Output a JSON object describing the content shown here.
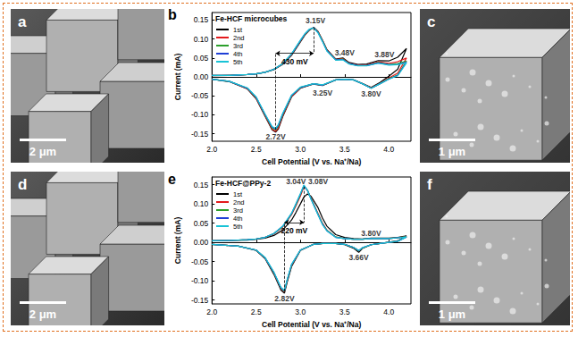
{
  "images": [
    {
      "label": "a",
      "scale_bar": "2 μm"
    },
    {
      "label": "c",
      "scale_bar": "1 μm"
    },
    {
      "label": "d",
      "scale_bar": "2 μm"
    },
    {
      "label": "f",
      "scale_bar": "1 μm"
    }
  ],
  "chart_data": [
    {
      "type": "line",
      "panel_label": "b",
      "title": "Fe-HCF microcubes",
      "x_label": "Cell Potential (V vs. Na⁺/Na)",
      "y_label": "Current (mA)",
      "xlim": [
        2.0,
        4.25
      ],
      "xticks": [
        {
          "value": 2,
          "label": "2.0"
        },
        2.5,
        {
          "value": 3,
          "label": "3.0"
        },
        3.5,
        {
          "value": 4,
          "label": "4.0"
        }
      ],
      "ylim": [
        -0.17,
        0.17
      ],
      "yticks": [
        -0.15,
        {
          "value": -0.1,
          "label": "-0.10"
        },
        -0.05,
        {
          "value": 0,
          "label": "0.00"
        },
        0.05,
        {
          "value": 0.1,
          "label": "0.10"
        },
        0.15
      ],
      "grid": false,
      "legend": "upper left",
      "x": [
        2.0,
        2.2,
        2.4,
        2.5,
        2.6,
        2.7,
        2.8,
        2.9,
        3.0,
        3.05,
        3.1,
        3.15,
        3.2,
        3.25,
        3.3,
        3.4,
        3.48,
        3.55,
        3.65,
        3.75,
        3.88,
        4.0,
        4.1,
        4.2,
        4.1,
        4.0,
        3.9,
        3.8,
        3.7,
        3.6,
        3.5,
        3.4,
        3.25,
        3.15,
        3.0,
        2.9,
        2.8,
        2.75,
        2.72,
        2.68,
        2.6,
        2.5,
        2.4,
        2.2,
        2.0
      ],
      "series": [
        {
          "name": "1st",
          "color": "#000000",
          "values": [
            0.003,
            0.004,
            0.006,
            0.008,
            0.012,
            0.019,
            0.033,
            0.057,
            0.092,
            0.11,
            0.123,
            0.131,
            0.12,
            0.097,
            0.072,
            0.047,
            0.05,
            0.038,
            0.033,
            0.034,
            0.043,
            0.042,
            0.052,
            0.075,
            0.02,
            0.002,
            -0.015,
            -0.028,
            -0.017,
            -0.008,
            -0.006,
            -0.008,
            -0.023,
            -0.019,
            -0.03,
            -0.053,
            -0.105,
            -0.138,
            -0.146,
            -0.14,
            -0.104,
            -0.058,
            -0.032,
            -0.013,
            -0.006
          ]
        },
        {
          "name": "2nd",
          "color": "#e41a1c",
          "values": [
            0.004,
            0.004,
            0.006,
            0.008,
            0.012,
            0.02,
            0.034,
            0.059,
            0.094,
            0.111,
            0.124,
            0.13,
            0.119,
            0.096,
            0.071,
            0.046,
            0.048,
            0.036,
            0.031,
            0.031,
            0.04,
            0.036,
            0.04,
            0.05,
            0.01,
            -0.003,
            -0.017,
            -0.029,
            -0.018,
            -0.008,
            -0.006,
            -0.008,
            -0.022,
            -0.018,
            -0.029,
            -0.052,
            -0.103,
            -0.135,
            -0.144,
            -0.138,
            -0.102,
            -0.057,
            -0.031,
            -0.012,
            -0.006
          ]
        },
        {
          "name": "3rd",
          "color": "#2ca02c",
          "values": [
            0.004,
            0.004,
            0.006,
            0.008,
            0.012,
            0.02,
            0.035,
            0.06,
            0.095,
            0.112,
            0.124,
            0.13,
            0.118,
            0.095,
            0.07,
            0.045,
            0.047,
            0.035,
            0.03,
            0.03,
            0.038,
            0.033,
            0.035,
            0.042,
            0.005,
            -0.005,
            -0.018,
            -0.03,
            -0.018,
            -0.008,
            -0.006,
            -0.008,
            -0.022,
            -0.018,
            -0.028,
            -0.05,
            -0.1,
            -0.13,
            -0.14,
            -0.135,
            -0.1,
            -0.055,
            -0.03,
            -0.012,
            -0.006
          ]
        },
        {
          "name": "4th",
          "color": "#1f3fd6",
          "values": [
            0.004,
            0.004,
            0.006,
            0.008,
            0.012,
            0.02,
            0.035,
            0.06,
            0.096,
            0.113,
            0.125,
            0.13,
            0.117,
            0.094,
            0.069,
            0.045,
            0.046,
            0.035,
            0.03,
            0.03,
            0.037,
            0.032,
            0.033,
            0.039,
            0.004,
            -0.006,
            -0.018,
            -0.03,
            -0.018,
            -0.008,
            -0.006,
            -0.008,
            -0.022,
            -0.018,
            -0.028,
            -0.049,
            -0.098,
            -0.128,
            -0.138,
            -0.133,
            -0.099,
            -0.054,
            -0.03,
            -0.012,
            -0.006
          ]
        },
        {
          "name": "5th",
          "color": "#19c3d6",
          "values": [
            0.004,
            0.004,
            0.006,
            0.008,
            0.012,
            0.02,
            0.035,
            0.061,
            0.097,
            0.114,
            0.126,
            0.129,
            0.116,
            0.093,
            0.068,
            0.044,
            0.045,
            0.034,
            0.029,
            0.029,
            0.036,
            0.031,
            0.032,
            0.037,
            0.003,
            -0.006,
            -0.018,
            -0.03,
            -0.018,
            -0.008,
            -0.006,
            -0.008,
            -0.021,
            -0.018,
            -0.027,
            -0.048,
            -0.096,
            -0.126,
            -0.136,
            -0.131,
            -0.098,
            -0.053,
            -0.029,
            -0.012,
            -0.006
          ]
        }
      ],
      "annotations": [
        {
          "text": "3.15V",
          "x": 3.17,
          "y": 0.148
        },
        {
          "text": "3.48V",
          "x": 3.5,
          "y": 0.064
        },
        {
          "text": "3.88V",
          "x": 3.95,
          "y": 0.06
        },
        {
          "text": "3.25V",
          "x": 3.25,
          "y": -0.042
        },
        {
          "text": "3.80V",
          "x": 3.8,
          "y": -0.046
        },
        {
          "text": "2.72V",
          "x": 2.72,
          "y": -0.158
        }
      ],
      "peak_separation": {
        "label": "430 mV",
        "from": [
          2.72,
          -0.14
        ],
        "to": [
          3.15,
          0.13
        ],
        "y": 0.062
      }
    },
    {
      "type": "line",
      "panel_label": "e",
      "title": "Fe-HCF@PPy-2",
      "x_label": "Cell Potential (V vs. Na⁺/Na)",
      "y_label": "Current (mA)",
      "xlim": [
        2.0,
        4.25
      ],
      "xticks": [
        {
          "value": 2,
          "label": "2.0"
        },
        2.5,
        {
          "value": 3,
          "label": "3.0"
        },
        3.5,
        {
          "value": 4,
          "label": "4.0"
        }
      ],
      "ylim": [
        -0.16,
        0.17
      ],
      "yticks": [
        -0.15,
        {
          "value": -0.1,
          "label": "-0.10"
        },
        -0.05,
        {
          "value": 0,
          "label": "0.00"
        },
        0.05,
        {
          "value": 0.1,
          "label": "0.10"
        },
        0.15
      ],
      "grid": false,
      "legend": "upper left",
      "x": [
        2.0,
        2.2,
        2.4,
        2.5,
        2.6,
        2.7,
        2.8,
        2.9,
        2.95,
        3.0,
        3.04,
        3.08,
        3.12,
        3.2,
        3.25,
        3.3,
        3.4,
        3.5,
        3.6,
        3.7,
        3.8,
        3.9,
        4.0,
        4.1,
        4.2,
        4.1,
        4.0,
        3.9,
        3.8,
        3.7,
        3.66,
        3.6,
        3.5,
        3.4,
        3.25,
        3.15,
        3.0,
        2.9,
        2.85,
        2.82,
        2.78,
        2.7,
        2.6,
        2.5,
        2.3,
        2.0
      ],
      "series": [
        {
          "name": "1st",
          "color": "#000000",
          "values": [
            0.004,
            0.005,
            0.006,
            0.008,
            0.011,
            0.018,
            0.032,
            0.058,
            0.078,
            0.1,
            0.118,
            0.126,
            0.12,
            0.09,
            0.063,
            0.042,
            0.02,
            0.013,
            0.01,
            0.009,
            0.011,
            0.011,
            0.011,
            0.013,
            0.017,
            0.004,
            0.001,
            -0.003,
            -0.006,
            -0.016,
            -0.026,
            -0.015,
            -0.006,
            -0.003,
            -0.003,
            -0.005,
            -0.021,
            -0.063,
            -0.104,
            -0.132,
            -0.124,
            -0.083,
            -0.042,
            -0.021,
            -0.01,
            -0.005
          ]
        },
        {
          "name": "2nd",
          "color": "#e41a1c",
          "values": [
            0.004,
            0.005,
            0.007,
            0.009,
            0.013,
            0.022,
            0.04,
            0.072,
            0.095,
            0.12,
            0.145,
            0.135,
            0.115,
            0.075,
            0.05,
            0.032,
            0.014,
            0.01,
            0.008,
            0.008,
            0.01,
            0.01,
            0.01,
            0.012,
            0.015,
            0.003,
            0.0,
            -0.003,
            -0.006,
            -0.015,
            -0.022,
            -0.013,
            -0.005,
            -0.003,
            -0.003,
            -0.005,
            -0.02,
            -0.06,
            -0.1,
            -0.128,
            -0.12,
            -0.08,
            -0.04,
            -0.02,
            -0.01,
            -0.005
          ]
        },
        {
          "name": "3rd",
          "color": "#2ca02c",
          "values": [
            0.004,
            0.005,
            0.007,
            0.009,
            0.013,
            0.023,
            0.041,
            0.074,
            0.098,
            0.124,
            0.147,
            0.136,
            0.114,
            0.073,
            0.048,
            0.031,
            0.014,
            0.01,
            0.008,
            0.008,
            0.01,
            0.01,
            0.01,
            0.012,
            0.015,
            0.003,
            0.0,
            -0.003,
            -0.006,
            -0.015,
            -0.022,
            -0.013,
            -0.005,
            -0.003,
            -0.003,
            -0.005,
            -0.02,
            -0.059,
            -0.099,
            -0.127,
            -0.119,
            -0.079,
            -0.04,
            -0.02,
            -0.01,
            -0.005
          ]
        },
        {
          "name": "4th",
          "color": "#1f3fd6",
          "values": [
            0.004,
            0.005,
            0.007,
            0.009,
            0.013,
            0.023,
            0.042,
            0.075,
            0.1,
            0.126,
            0.148,
            0.135,
            0.113,
            0.072,
            0.047,
            0.03,
            0.013,
            0.01,
            0.008,
            0.008,
            0.01,
            0.01,
            0.01,
            0.012,
            0.014,
            0.003,
            0.0,
            -0.003,
            -0.006,
            -0.014,
            -0.021,
            -0.013,
            -0.005,
            -0.003,
            -0.003,
            -0.005,
            -0.02,
            -0.058,
            -0.098,
            -0.126,
            -0.118,
            -0.078,
            -0.04,
            -0.02,
            -0.01,
            -0.005
          ]
        },
        {
          "name": "5th",
          "color": "#19c3d6",
          "values": [
            0.004,
            0.005,
            0.007,
            0.009,
            0.013,
            0.023,
            0.042,
            0.076,
            0.101,
            0.127,
            0.149,
            0.135,
            0.112,
            0.071,
            0.046,
            0.03,
            0.013,
            0.01,
            0.008,
            0.008,
            0.01,
            0.01,
            0.01,
            0.012,
            0.014,
            0.003,
            0.0,
            -0.003,
            -0.006,
            -0.014,
            -0.021,
            -0.013,
            -0.005,
            -0.003,
            -0.003,
            -0.005,
            -0.02,
            -0.057,
            -0.097,
            -0.125,
            -0.117,
            -0.077,
            -0.039,
            -0.02,
            -0.01,
            -0.005
          ]
        }
      ],
      "annotations": [
        {
          "text": "3.04V",
          "x": 2.95,
          "y": 0.158
        },
        {
          "text": "3.08V",
          "x": 3.2,
          "y": 0.158
        },
        {
          "text": "3.80V",
          "x": 3.8,
          "y": 0.024
        },
        {
          "text": "3.66V",
          "x": 3.66,
          "y": -0.038
        },
        {
          "text": "2.82V",
          "x": 2.82,
          "y": -0.146
        }
      ],
      "peak_separation": {
        "label": "220 mV",
        "from": [
          2.82,
          -0.128
        ],
        "to": [
          3.04,
          0.145
        ],
        "y": 0.052
      }
    }
  ]
}
